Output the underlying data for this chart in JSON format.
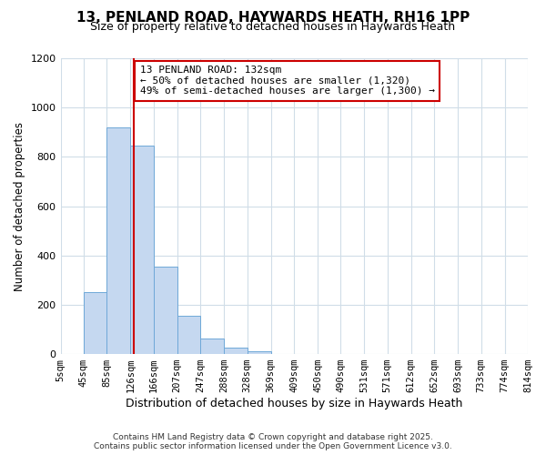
{
  "title": "13, PENLAND ROAD, HAYWARDS HEATH, RH16 1PP",
  "subtitle": "Size of property relative to detached houses in Haywards Heath",
  "xlabel": "Distribution of detached houses by size in Haywards Heath",
  "ylabel": "Number of detached properties",
  "bar_values": [
    0,
    250,
    920,
    845,
    355,
    157,
    62,
    27,
    10,
    2,
    0,
    0,
    0,
    0,
    0,
    0,
    0,
    0,
    0
  ],
  "bin_edges": [
    5,
    45,
    85,
    126,
    166,
    207,
    247,
    288,
    328,
    369,
    409,
    450,
    490,
    531,
    571,
    612,
    652,
    693,
    733,
    774
  ],
  "last_edge": 814,
  "tick_labels": [
    "5sqm",
    "45sqm",
    "85sqm",
    "126sqm",
    "166sqm",
    "207sqm",
    "247sqm",
    "288sqm",
    "328sqm",
    "369sqm",
    "409sqm",
    "450sqm",
    "490sqm",
    "531sqm",
    "571sqm",
    "612sqm",
    "652sqm",
    "693sqm",
    "733sqm",
    "774sqm",
    "814sqm"
  ],
  "bar_color": "#c5d8f0",
  "bar_edge_color": "#6fa8d8",
  "vline_x": 132,
  "vline_color": "#cc0000",
  "annotation_box_title": "13 PENLAND ROAD: 132sqm",
  "annotation_line1": "← 50% of detached houses are smaller (1,320)",
  "annotation_line2": "49% of semi-detached houses are larger (1,300) →",
  "annotation_box_color": "#cc0000",
  "ylim": [
    0,
    1200
  ],
  "yticks": [
    0,
    200,
    400,
    600,
    800,
    1000,
    1200
  ],
  "background_color": "#ffffff",
  "grid_color": "#d0dde8",
  "footnote1": "Contains HM Land Registry data © Crown copyright and database right 2025.",
  "footnote2": "Contains public sector information licensed under the Open Government Licence v3.0."
}
